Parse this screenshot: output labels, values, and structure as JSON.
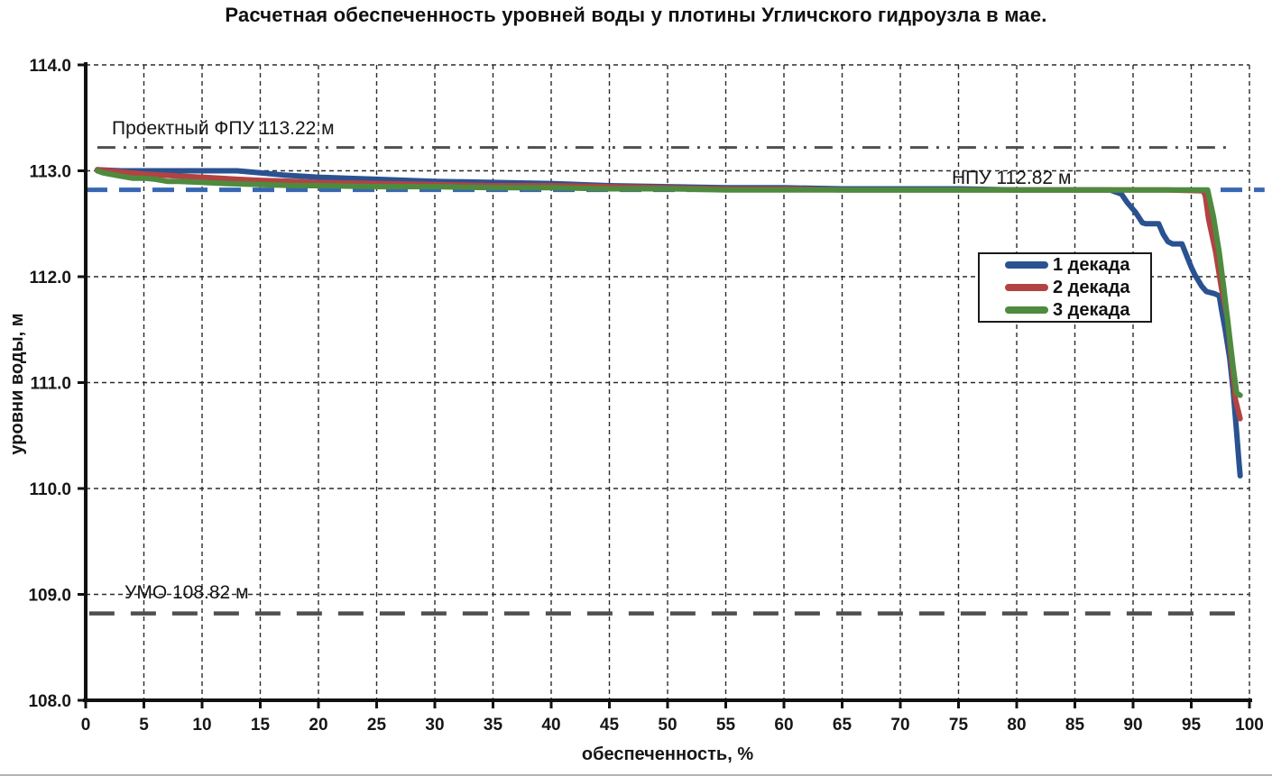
{
  "chart_data": {
    "type": "line",
    "title": "Расчетная обеспеченность уровней воды у плотины Угличского гидроузла в мае.",
    "xlabel": "обеспеченность,  %",
    "ylabel": "уровни воды, м",
    "xlim": [
      0,
      100
    ],
    "ylim": [
      108.0,
      114.0
    ],
    "grid": true,
    "legend_position": "middle-right",
    "x_ticks": [
      {
        "value": 0,
        "label": "0"
      },
      {
        "value": 5,
        "label": "5"
      },
      {
        "value": 10,
        "label": "10"
      },
      {
        "value": 15,
        "label": "15"
      },
      {
        "value": 20,
        "label": "20"
      },
      {
        "value": 25,
        "label": "25"
      },
      {
        "value": 30,
        "label": "30"
      },
      {
        "value": 35,
        "label": "35"
      },
      {
        "value": 40,
        "label": "40"
      },
      {
        "value": 45,
        "label": "45"
      },
      {
        "value": 50,
        "label": "50"
      },
      {
        "value": 55,
        "label": "55"
      },
      {
        "value": 60,
        "label": "60"
      },
      {
        "value": 65,
        "label": "65"
      },
      {
        "value": 70,
        "label": "70"
      },
      {
        "value": 75,
        "label": "75"
      },
      {
        "value": 80,
        "label": "80"
      },
      {
        "value": 85,
        "label": "85"
      },
      {
        "value": 90,
        "label": "90"
      },
      {
        "value": 95,
        "label": "95"
      },
      {
        "value": 100,
        "label": "100"
      }
    ],
    "y_ticks": [
      {
        "value": 114.0,
        "label": "114.0"
      },
      {
        "value": 113.0,
        "label": "113.0"
      },
      {
        "value": 112.0,
        "label": "112.0"
      },
      {
        "value": 111.0,
        "label": "111.0"
      },
      {
        "value": 110.0,
        "label": "110.0"
      },
      {
        "value": 109.0,
        "label": "109.0"
      },
      {
        "value": 108.0,
        "label": "108.0"
      }
    ],
    "series": [
      {
        "name": "1 декада",
        "color": "#2a5291",
        "points": [
          [
            1,
            113.01
          ],
          [
            3,
            113.0
          ],
          [
            5,
            113.0
          ],
          [
            8,
            113.0
          ],
          [
            10,
            113.0
          ],
          [
            13,
            113.0
          ],
          [
            15,
            112.98
          ],
          [
            17,
            112.96
          ],
          [
            20,
            112.94
          ],
          [
            25,
            112.92
          ],
          [
            30,
            112.9
          ],
          [
            35,
            112.89
          ],
          [
            40,
            112.88
          ],
          [
            45,
            112.86
          ],
          [
            50,
            112.85
          ],
          [
            55,
            112.84
          ],
          [
            60,
            112.84
          ],
          [
            65,
            112.83
          ],
          [
            70,
            112.83
          ],
          [
            75,
            112.83
          ],
          [
            80,
            112.82
          ],
          [
            85,
            112.82
          ],
          [
            88,
            112.82
          ],
          [
            89,
            112.78
          ],
          [
            89.5,
            112.7
          ],
          [
            90.2,
            112.61
          ],
          [
            90.8,
            112.51
          ],
          [
            91.1,
            112.5
          ],
          [
            92.2,
            112.5
          ],
          [
            92.6,
            112.4
          ],
          [
            93,
            112.33
          ],
          [
            93.4,
            112.31
          ],
          [
            94.2,
            112.31
          ],
          [
            94.6,
            112.2
          ],
          [
            95,
            112.09
          ],
          [
            95.3,
            112.02
          ],
          [
            95.9,
            111.91
          ],
          [
            96.3,
            111.86
          ],
          [
            97,
            111.84
          ],
          [
            97.4,
            111.82
          ],
          [
            97.6,
            111.69
          ],
          [
            97.9,
            111.51
          ],
          [
            98.3,
            111.23
          ],
          [
            98.6,
            110.93
          ],
          [
            98.9,
            110.53
          ],
          [
            99.1,
            110.25
          ],
          [
            99.2,
            110.12
          ]
        ]
      },
      {
        "name": "2 декада",
        "color": "#b24342",
        "points": [
          [
            1,
            113.01
          ],
          [
            2,
            113.0
          ],
          [
            3,
            112.99
          ],
          [
            5,
            112.97
          ],
          [
            8,
            112.95
          ],
          [
            10,
            112.94
          ],
          [
            13,
            112.92
          ],
          [
            15,
            112.91
          ],
          [
            18,
            112.9
          ],
          [
            20,
            112.89
          ],
          [
            25,
            112.88
          ],
          [
            30,
            112.87
          ],
          [
            35,
            112.86
          ],
          [
            40,
            112.86
          ],
          [
            45,
            112.85
          ],
          [
            50,
            112.84
          ],
          [
            55,
            112.83
          ],
          [
            60,
            112.83
          ],
          [
            65,
            112.82
          ],
          [
            70,
            112.82
          ],
          [
            75,
            112.82
          ],
          [
            80,
            112.82
          ],
          [
            85,
            112.82
          ],
          [
            90,
            112.82
          ],
          [
            93,
            112.82
          ],
          [
            96,
            112.81
          ],
          [
            96.2,
            112.77
          ],
          [
            96.5,
            112.54
          ],
          [
            97.1,
            112.23
          ],
          [
            97.6,
            111.89
          ],
          [
            98.1,
            111.61
          ],
          [
            98.4,
            111.27
          ],
          [
            98.8,
            110.84
          ],
          [
            99.2,
            110.66
          ]
        ]
      },
      {
        "name": "3 декада",
        "color": "#4e8b3e",
        "points": [
          [
            1,
            113.0
          ],
          [
            1.5,
            112.98
          ],
          [
            2,
            112.97
          ],
          [
            3,
            112.95
          ],
          [
            4,
            112.93
          ],
          [
            5,
            112.93
          ],
          [
            6,
            112.92
          ],
          [
            7,
            112.9
          ],
          [
            8,
            112.9
          ],
          [
            10,
            112.89
          ],
          [
            12,
            112.88
          ],
          [
            15,
            112.87
          ],
          [
            18,
            112.86
          ],
          [
            20,
            112.86
          ],
          [
            25,
            112.85
          ],
          [
            30,
            112.85
          ],
          [
            35,
            112.84
          ],
          [
            40,
            112.84
          ],
          [
            45,
            112.83
          ],
          [
            50,
            112.83
          ],
          [
            55,
            112.82
          ],
          [
            60,
            112.82
          ],
          [
            65,
            112.82
          ],
          [
            70,
            112.82
          ],
          [
            75,
            112.82
          ],
          [
            80,
            112.82
          ],
          [
            85,
            112.82
          ],
          [
            90,
            112.82
          ],
          [
            93,
            112.82
          ],
          [
            96.4,
            112.82
          ],
          [
            96.9,
            112.57
          ],
          [
            97.4,
            112.23
          ],
          [
            97.8,
            111.89
          ],
          [
            98.2,
            111.52
          ],
          [
            98.6,
            111.15
          ],
          [
            98.9,
            110.9
          ],
          [
            99.2,
            110.88
          ]
        ]
      }
    ],
    "reference_lines": [
      {
        "label": "Проектный ФПУ 113.22 м",
        "value": 113.22,
        "color": "#4f4f4f",
        "style": "dash-dot-dot",
        "x_range": [
          1,
          98.6
        ]
      },
      {
        "label": "НПУ 112.82 м",
        "value": 112.82,
        "color": "#3767b3",
        "style": "long-dash",
        "x_range": [
          0,
          101.3
        ]
      },
      {
        "label": "УМО 108.82 м",
        "value": 108.82,
        "color": "#4f4f4f",
        "style": "long-dash-wide",
        "x_range": [
          0.3,
          100
        ]
      }
    ]
  },
  "legend": {
    "items": [
      {
        "label": "1 декада",
        "color": "#2a5291"
      },
      {
        "label": "2 декада",
        "color": "#b24342"
      },
      {
        "label": "3 декада",
        "color": "#4e8b3e"
      }
    ]
  },
  "colors": {
    "grid": "#2b2b2b",
    "axis": "#111111",
    "text": "#161616",
    "background": "#ffffff"
  }
}
